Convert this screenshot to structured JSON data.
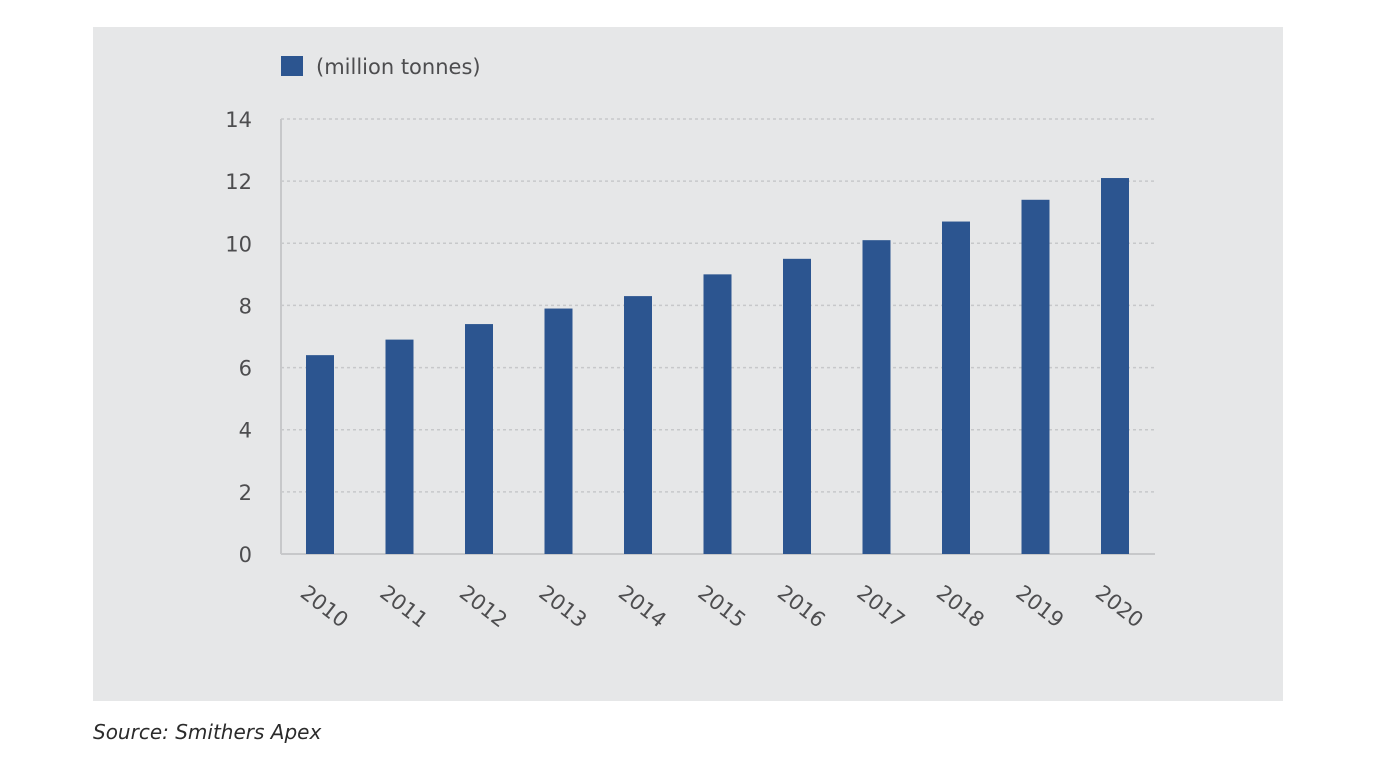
{
  "chart_data": {
    "type": "bar",
    "legend": {
      "label": "(million tonnes)",
      "placement": "top-left"
    },
    "categories": [
      "2010",
      "2011",
      "2012",
      "2013",
      "2014",
      "2015",
      "2016",
      "2017",
      "2018",
      "2019",
      "2020"
    ],
    "series": [
      {
        "name": "(million tonnes)",
        "values": [
          6.4,
          6.9,
          7.4,
          7.9,
          8.3,
          9.0,
          9.5,
          10.1,
          10.7,
          11.4,
          12.1
        ]
      }
    ],
    "ylim": [
      0,
      14
    ],
    "yticks": [
      0,
      2,
      4,
      6,
      8,
      10,
      12,
      14
    ],
    "grid": true,
    "colors": {
      "bar": "#2c5590",
      "panel": "#e6e7e8",
      "grid": "#c7c8ca",
      "tick_text": "#4d4d4f"
    }
  },
  "source": "Source: Smithers Apex"
}
